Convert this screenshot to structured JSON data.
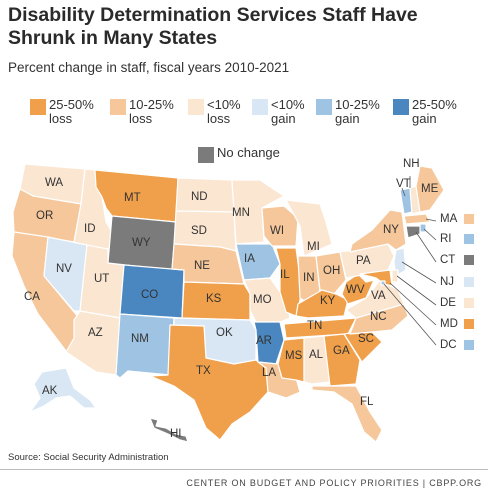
{
  "title": "Disability Determination Services Staff Have Shrunk in Many States",
  "subtitle": "Percent change in staff, fiscal years 2010-2021",
  "colors": {
    "loss_25_50": "#f0a04a",
    "loss_10_25": "#f5c79a",
    "loss_lt10": "#fbe6d2",
    "gain_lt10": "#d9e7f4",
    "gain_10_25": "#9fc3e2",
    "gain_25_50": "#4a87c1",
    "no_change": "#7b7b7b"
  },
  "legend": [
    {
      "id": "loss_25_50",
      "label": "25-50%\nloss"
    },
    {
      "id": "loss_10_25",
      "label": "10-25%\nloss"
    },
    {
      "id": "loss_lt10",
      "label": "<10%\nloss"
    },
    {
      "id": "gain_lt10",
      "label": "<10%\ngain"
    },
    {
      "id": "gain_10_25",
      "label": "10-25%\ngain"
    },
    {
      "id": "gain_25_50",
      "label": "25-50%\ngain"
    },
    {
      "id": "no_change",
      "label": "No change"
    }
  ],
  "states": {
    "WA": "loss_lt10",
    "OR": "loss_10_25",
    "CA": "loss_10_25",
    "ID": "loss_lt10",
    "NV": "gain_lt10",
    "UT": "loss_lt10",
    "AZ": "loss_lt10",
    "MT": "loss_25_50",
    "WY": "no_change",
    "CO": "gain_25_50",
    "NM": "gain_10_25",
    "ND": "loss_lt10",
    "SD": "loss_lt10",
    "NE": "loss_10_25",
    "KS": "loss_25_50",
    "OK": "gain_lt10",
    "TX": "loss_25_50",
    "MN": "loss_lt10",
    "IA": "gain_10_25",
    "MO": "loss_lt10",
    "AR": "gain_25_50",
    "LA": "loss_10_25",
    "WI": "loss_10_25",
    "IL": "loss_25_50",
    "MI": "loss_lt10",
    "IN": "loss_10_25",
    "OH": "loss_10_25",
    "KY": "loss_25_50",
    "TN": "loss_25_50",
    "MS": "loss_25_50",
    "AL": "loss_lt10",
    "GA": "loss_25_50",
    "FL": "loss_10_25",
    "SC": "loss_25_50",
    "NC": "loss_10_25",
    "VA": "loss_lt10",
    "WV": "loss_25_50",
    "PA": "loss_lt10",
    "NY": "loss_10_25",
    "VT": "gain_10_25",
    "NH": "loss_lt10",
    "ME": "loss_10_25",
    "MA": "loss_10_25",
    "RI": "gain_10_25",
    "CT": "no_change",
    "NJ": "gain_lt10",
    "DE": "loss_lt10",
    "MD": "loss_25_50",
    "DC": "gain_10_25",
    "AK": "gain_lt10",
    "HI": "no_change"
  },
  "state_labels": {
    "WA": "WA",
    "OR": "OR",
    "CA": "CA",
    "ID": "ID",
    "NV": "NV",
    "UT": "UT",
    "AZ": "AZ",
    "MT": "MT",
    "WY": "WY",
    "CO": "CO",
    "NM": "NM",
    "ND": "ND",
    "SD": "SD",
    "NE": "NE",
    "KS": "KS",
    "OK": "OK",
    "TX": "TX",
    "MN": "MN",
    "IA": "IA",
    "MO": "MO",
    "AR": "AR",
    "LA": "LA",
    "WI": "WI",
    "IL": "IL",
    "MI": "MI",
    "IN": "IN",
    "OH": "OH",
    "KY": "KY",
    "TN": "TN",
    "MS": "MS",
    "AL": "AL",
    "GA": "GA",
    "FL": "FL",
    "SC": "SC",
    "NC": "NC",
    "VA": "VA",
    "WV": "WV",
    "PA": "PA",
    "NY": "NY",
    "VT": "VT",
    "NH": "NH",
    "ME": "ME",
    "AK": "AK",
    "HI": "HI"
  },
  "northeast_callouts": [
    {
      "code": "MA",
      "label": "MA"
    },
    {
      "code": "RI",
      "label": "RI"
    },
    {
      "code": "CT",
      "label": "CT"
    },
    {
      "code": "NJ",
      "label": "NJ"
    },
    {
      "code": "DE",
      "label": "DE"
    },
    {
      "code": "MD",
      "label": "MD"
    },
    {
      "code": "DC",
      "label": "DC"
    }
  ],
  "source": "Source: Social Security Administration",
  "footer": "CENTER ON BUDGET AND POLICY PRIORITIES | CBPP.ORG"
}
